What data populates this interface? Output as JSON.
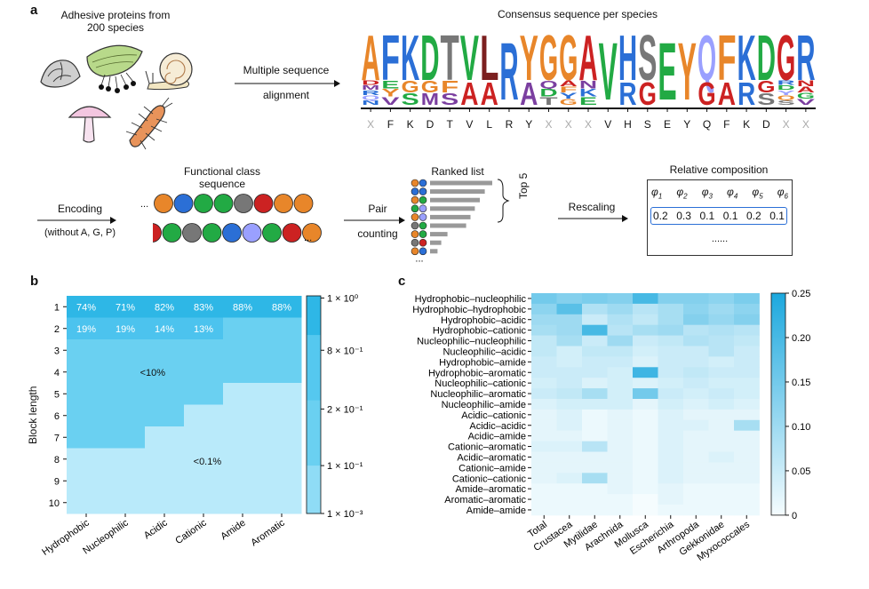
{
  "panels": {
    "a": {
      "letter": "a",
      "proteins_label_line1": "Adhesive proteins from",
      "proteins_label_line2": "200 species",
      "msa_label_line1": "Multiple sequence",
      "msa_label_line2": "alignment",
      "consensus_title": "Consensus sequence per species",
      "consensus_sequence": [
        "X",
        "F",
        "K",
        "D",
        "T",
        "V",
        "L",
        "R",
        "Y",
        "X",
        "X",
        "X",
        "V",
        "H",
        "S",
        "E",
        "Y",
        "Q",
        "F",
        "K",
        "D",
        "X",
        "X"
      ],
      "logo_letters": [
        {
          "main": "A",
          "color": "#e8862a",
          "stack": [
            "D",
            "M",
            "R",
            "Q",
            "N"
          ],
          "stack_colors": [
            "#cc2222",
            "#7b3fa0",
            "#2b6fd6",
            "#9aa0ff",
            "#2b6fd6"
          ]
        },
        {
          "main": "F",
          "color": "#2b6fd6",
          "stack": [
            "E",
            "Y",
            "V"
          ],
          "stack_colors": [
            "#22aa44",
            "#e8862a",
            "#7b3fa0"
          ]
        },
        {
          "main": "K",
          "color": "#2b6fd6",
          "stack": [
            "G",
            "S"
          ],
          "stack_colors": [
            "#e8862a",
            "#22aa44"
          ]
        },
        {
          "main": "D",
          "color": "#22aa44",
          "stack": [
            "G",
            "M"
          ],
          "stack_colors": [
            "#e8862a",
            "#7b3fa0"
          ]
        },
        {
          "main": "T",
          "color": "#777777",
          "stack": [
            "F",
            "S"
          ],
          "stack_colors": [
            "#e8862a",
            "#7b3fa0"
          ]
        },
        {
          "main": "V",
          "color": "#22aa44",
          "stack": [
            "A"
          ],
          "stack_colors": [
            "#cc2222"
          ]
        },
        {
          "main": "L",
          "color": "#7b1f1f",
          "stack": [
            "A"
          ],
          "stack_colors": [
            "#cc2222"
          ]
        },
        {
          "main": "R",
          "color": "#2b6fd6",
          "stack": [],
          "stack_colors": []
        },
        {
          "main": "Y",
          "color": "#e8862a",
          "stack": [
            "A"
          ],
          "stack_colors": [
            "#7b3fa0"
          ]
        },
        {
          "main": "G",
          "color": "#e8862a",
          "stack": [
            "Q",
            "D",
            "T"
          ],
          "stack_colors": [
            "#7b3fa0",
            "#22aa44",
            "#777777"
          ]
        },
        {
          "main": "G",
          "color": "#e8862a",
          "stack": [
            "A",
            "F",
            "Y",
            "G"
          ],
          "stack_colors": [
            "#cc2222",
            "#e8862a",
            "#2b6fd6",
            "#e8862a"
          ]
        },
        {
          "main": "A",
          "color": "#cc2222",
          "stack": [
            "N",
            "K",
            "E"
          ],
          "stack_colors": [
            "#7b3fa0",
            "#2b6fd6",
            "#22aa44"
          ]
        },
        {
          "main": "V",
          "color": "#22aa44",
          "stack": [],
          "stack_colors": []
        },
        {
          "main": "H",
          "color": "#2b6fd6",
          "stack": [
            "R"
          ],
          "stack_colors": [
            "#2b6fd6"
          ]
        },
        {
          "main": "S",
          "color": "#777777",
          "stack": [
            "G"
          ],
          "stack_colors": [
            "#cc2222"
          ]
        },
        {
          "main": "E",
          "color": "#22aa44",
          "stack": [],
          "stack_colors": []
        },
        {
          "main": "Y",
          "color": "#e8862a",
          "stack": [],
          "stack_colors": []
        },
        {
          "main": "Q",
          "color": "#9aa0ff",
          "stack": [
            "G"
          ],
          "stack_colors": [
            "#cc2222"
          ]
        },
        {
          "main": "F",
          "color": "#e8862a",
          "stack": [
            "A"
          ],
          "stack_colors": [
            "#cc2222"
          ]
        },
        {
          "main": "K",
          "color": "#2b6fd6",
          "stack": [
            "R"
          ],
          "stack_colors": [
            "#2b6fd6"
          ]
        },
        {
          "main": "D",
          "color": "#22aa44",
          "stack": [
            "G",
            "S"
          ],
          "stack_colors": [
            "#cc2222",
            "#777777"
          ]
        },
        {
          "main": "G",
          "color": "#cc2222",
          "stack": [
            "R",
            "D",
            "Y",
            "Q",
            "S"
          ],
          "stack_colors": [
            "#2b6fd6",
            "#22aa44",
            "#9aa0ff",
            "#e8862a",
            "#777777"
          ]
        },
        {
          "main": "R",
          "color": "#2b6fd6",
          "stack": [
            "N",
            "A",
            "G",
            "V"
          ],
          "stack_colors": [
            "#cc2222",
            "#cc2222",
            "#22aa44",
            "#7b3fa0"
          ]
        }
      ],
      "functional_label_line1": "Functional class",
      "functional_label_line2": "sequence",
      "encoding_line1": "Encoding",
      "encoding_line2": "(without A, G, P)",
      "ellipsis": "...",
      "row1_colors": [
        "#e8862a",
        "#2b6fd6",
        "#22aa44",
        "#22aa44",
        "#777777",
        "#cc2222",
        "#e8862a",
        "#e8862a"
      ],
      "row2_colors": [
        "#cc2222",
        "#22aa44",
        "#777777",
        "#22aa44",
        "#2b6fd6",
        "#9aa0ff",
        "#22aa44",
        "#cc2222",
        "#e8862a"
      ],
      "pair_line1": "Pair",
      "pair_line2": "counting",
      "ranked_title": "Ranked list",
      "ranked_pairs": [
        {
          "a": "#e8862a",
          "b": "#2b6fd6",
          "value": 1.0
        },
        {
          "a": "#2b6fd6",
          "b": "#2b6fd6",
          "value": 0.88
        },
        {
          "a": "#e8862a",
          "b": "#22aa44",
          "value": 0.8
        },
        {
          "a": "#22aa44",
          "b": "#9aa0ff",
          "value": 0.72
        },
        {
          "a": "#e8862a",
          "b": "#9aa0ff",
          "value": 0.65
        },
        {
          "a": "#777777",
          "b": "#22aa44",
          "value": 0.58
        },
        {
          "a": "#e8862a",
          "b": "#22aa44",
          "value": 0.28
        },
        {
          "a": "#777777",
          "b": "#cc2222",
          "value": 0.18
        },
        {
          "a": "#e8862a",
          "b": "#2b6fd6",
          "value": 0.12
        }
      ],
      "top5_label": "Top 5",
      "rescaling_label": "Rescaling",
      "relative_title": "Relative composition",
      "phi_labels": [
        "φ",
        "φ",
        "φ",
        "φ",
        "φ",
        "φ"
      ],
      "phi_subscripts": [
        "1",
        "2",
        "3",
        "4",
        "5",
        "6"
      ],
      "phi_values": [
        "0.2",
        "0.3",
        "0.1",
        "0.1",
        "0.2",
        "0.1"
      ],
      "phi_ellipsis": "......"
    },
    "b": {
      "letter": "b",
      "ylabel": "Block length",
      "columns": [
        "Hydrophobic",
        "Nucleophilic",
        "Acidic",
        "Cationic",
        "Amide",
        "Aromatic"
      ],
      "rows": [
        "1",
        "2",
        "3",
        "4",
        "5",
        "6",
        "7",
        "8",
        "9",
        "10"
      ],
      "row1_labels": [
        "74%",
        "71%",
        "82%",
        "83%",
        "88%",
        "88%"
      ],
      "row2_labels": [
        "19%",
        "19%",
        "14%",
        "13%"
      ],
      "mid_label": "<10%",
      "low_label": "<0.1%",
      "colorbar_ticks": [
        "1 × 10⁰",
        "8 × 10⁻¹",
        "2 × 10⁻¹",
        "1 × 10⁻¹",
        "1 × 10⁻³"
      ],
      "color_top": "#2eb7e6",
      "color_mid": "#6ad0f1",
      "color_low": "#b9eafa",
      "color_row2": "#4cc3ee"
    },
    "c": {
      "letter": "c",
      "rows": [
        "Hydrophobic–nucleophilic",
        "Hydrophobic–hydrophobic",
        "Hydrophobic–acidic",
        "Hydrophobic–cationic",
        "Nucleophilic–nucleophilic",
        "Nucleophilic–acidic",
        "Hydrophobic–amide",
        "Hydrophobic–aromatic",
        "Nucleophilic–cationic",
        "Nucleophilic–aromatic",
        "Nucleophilic–amide",
        "Acidic–cationic",
        "Acidic–acidic",
        "Acidic–amide",
        "Cationic–aromatic",
        "Acidic–aromatic",
        "Cationic–amide",
        "Cationic–cationic",
        "Amide–aromatic",
        "Aromatic–aromatic",
        "Amide–amide"
      ],
      "columns": [
        "Total",
        "Crustacea",
        "Mytilidae",
        "Arachnida",
        "Mollusca",
        "Escherichia",
        "Arthropoda",
        "Gekkonidae",
        "Myxococcales"
      ],
      "colorbar_ticks": [
        "0.25",
        "0.20",
        "0.15",
        "0.10",
        "0.05",
        "0"
      ],
      "vmax": 0.25,
      "values": [
        [
          0.15,
          0.13,
          0.14,
          0.13,
          0.2,
          0.13,
          0.13,
          0.12,
          0.14
        ],
        [
          0.12,
          0.18,
          0.08,
          0.1,
          0.07,
          0.09,
          0.12,
          0.1,
          0.12
        ],
        [
          0.1,
          0.1,
          0.05,
          0.08,
          0.06,
          0.09,
          0.13,
          0.11,
          0.13
        ],
        [
          0.09,
          0.1,
          0.2,
          0.07,
          0.09,
          0.1,
          0.07,
          0.08,
          0.07
        ],
        [
          0.06,
          0.09,
          0.05,
          0.1,
          0.05,
          0.06,
          0.08,
          0.07,
          0.06
        ],
        [
          0.06,
          0.04,
          0.06,
          0.06,
          0.04,
          0.05,
          0.05,
          0.07,
          0.05
        ],
        [
          0.05,
          0.04,
          0.05,
          0.05,
          0.03,
          0.05,
          0.05,
          0.04,
          0.05
        ],
        [
          0.05,
          0.05,
          0.05,
          0.04,
          0.21,
          0.05,
          0.06,
          0.05,
          0.05
        ],
        [
          0.04,
          0.05,
          0.03,
          0.04,
          0.03,
          0.04,
          0.05,
          0.04,
          0.04
        ],
        [
          0.05,
          0.06,
          0.09,
          0.04,
          0.15,
          0.05,
          0.04,
          0.05,
          0.04
        ],
        [
          0.03,
          0.04,
          0.04,
          0.04,
          0.02,
          0.04,
          0.03,
          0.04,
          0.03
        ],
        [
          0.02,
          0.03,
          0.01,
          0.02,
          0.01,
          0.03,
          0.02,
          0.02,
          0.02
        ],
        [
          0.02,
          0.03,
          0.01,
          0.02,
          0.01,
          0.03,
          0.03,
          0.02,
          0.09
        ],
        [
          0.02,
          0.02,
          0.01,
          0.02,
          0.01,
          0.03,
          0.02,
          0.02,
          0.02
        ],
        [
          0.03,
          0.03,
          0.07,
          0.02,
          0.01,
          0.03,
          0.02,
          0.02,
          0.02
        ],
        [
          0.02,
          0.02,
          0.02,
          0.02,
          0.01,
          0.03,
          0.02,
          0.03,
          0.02
        ],
        [
          0.02,
          0.02,
          0.02,
          0.02,
          0.01,
          0.03,
          0.02,
          0.02,
          0.02
        ],
        [
          0.02,
          0.03,
          0.09,
          0.02,
          0.01,
          0.03,
          0.02,
          0.02,
          0.02
        ],
        [
          0.01,
          0.01,
          0.01,
          0.02,
          0.01,
          0.02,
          0.01,
          0.01,
          0.01
        ],
        [
          0.01,
          0.01,
          0.01,
          0.01,
          0.0,
          0.02,
          0.01,
          0.01,
          0.01
        ],
        [
          0.01,
          0.01,
          0.01,
          0.01,
          0.0,
          0.01,
          0.01,
          0.01,
          0.01
        ]
      ]
    }
  }
}
